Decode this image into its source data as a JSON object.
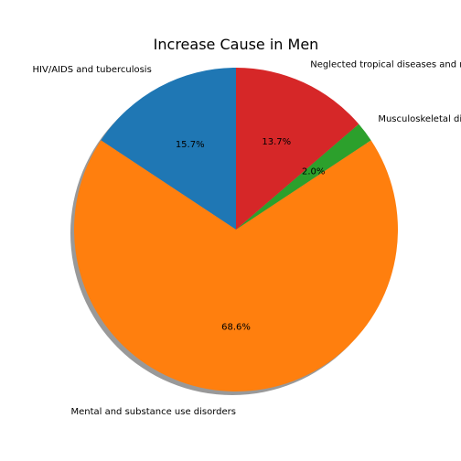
{
  "chart_data": {
    "type": "pie",
    "title": "Increase Cause in Men",
    "start_angle_deg": 90,
    "direction": "counterclockwise",
    "shadow": true,
    "slices": [
      {
        "label": "HIV/AIDS and tuberculosis",
        "percent": 15.7,
        "pct_text": "15.7%",
        "color": "#1f77b4"
      },
      {
        "label": "Mental and substance use disorders",
        "percent": 68.6,
        "pct_text": "68.6%",
        "color": "#ff7f0e"
      },
      {
        "label": "Musculoskeletal disorders",
        "percent": 2.0,
        "pct_text": "2.0%",
        "color": "#2ca02c"
      },
      {
        "label": "Neglected tropical diseases and malaria",
        "percent": 13.7,
        "pct_text": "13.7%",
        "color": "#d62728"
      }
    ]
  }
}
